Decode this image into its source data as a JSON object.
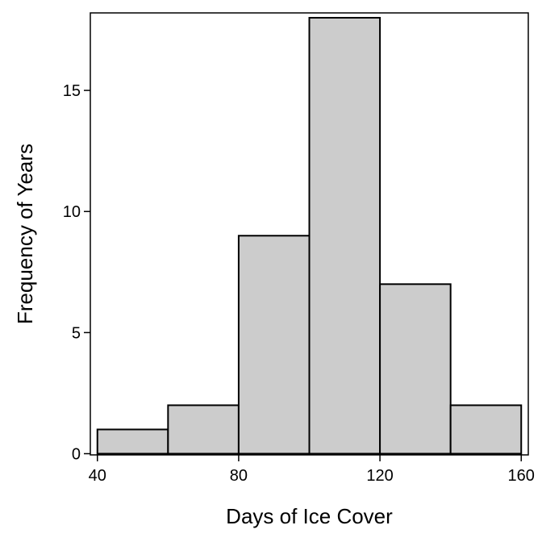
{
  "chart_data": {
    "type": "bar",
    "subtype": "histogram",
    "xlabel": "Days of Ice Cover",
    "ylabel": "Frequency of Years",
    "bins": [
      {
        "start": 40,
        "end": 60,
        "count": 1
      },
      {
        "start": 60,
        "end": 80,
        "count": 2
      },
      {
        "start": 80,
        "end": 100,
        "count": 9
      },
      {
        "start": 100,
        "end": 120,
        "count": 18
      },
      {
        "start": 120,
        "end": 140,
        "count": 7
      },
      {
        "start": 140,
        "end": 160,
        "count": 2
      }
    ],
    "x_ticks": [
      40,
      80,
      120,
      160
    ],
    "y_ticks": [
      0,
      5,
      10,
      15
    ],
    "xlim": [
      38,
      162
    ],
    "ylim": [
      -0.05,
      18.2
    ],
    "grid": false,
    "legend": "none",
    "colors": {
      "bar_fill": "#cccccc",
      "bar_stroke": "#000000",
      "frame": "#000000"
    }
  }
}
